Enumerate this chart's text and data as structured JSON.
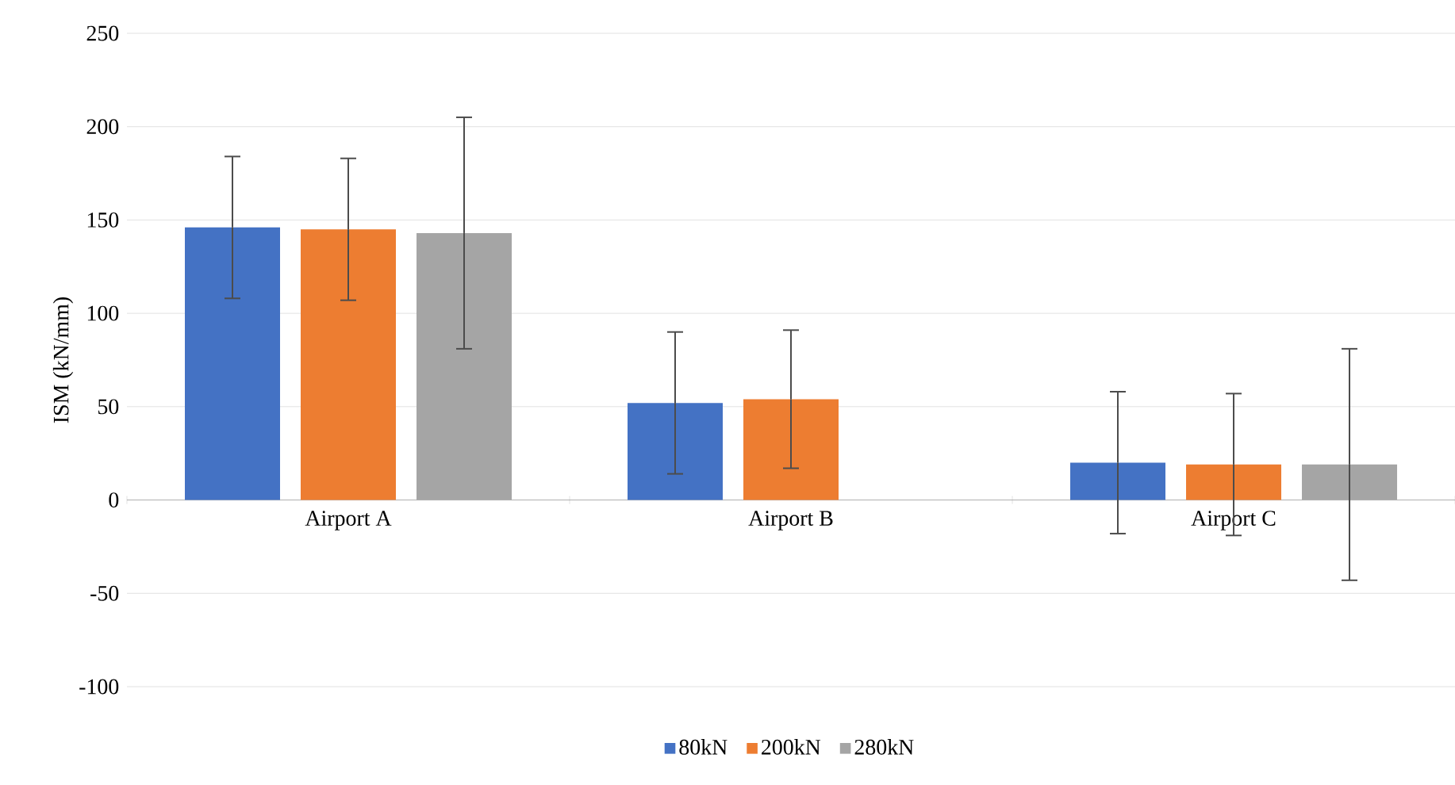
{
  "chart_data": {
    "type": "bar",
    "ylabel": "ISM (kN/mm)",
    "categories": [
      "Airport A",
      "Airport B",
      "Airport C"
    ],
    "series": [
      {
        "name": "80kN",
        "color": "#4472c4",
        "values": [
          146,
          52,
          20
        ],
        "errors": [
          38,
          38,
          38
        ]
      },
      {
        "name": "200kN",
        "color": "#ed7d31",
        "values": [
          145,
          54,
          19
        ],
        "errors": [
          38,
          37,
          38
        ]
      },
      {
        "name": "280kN",
        "color": "#a5a5a5",
        "values": [
          143,
          null,
          19
        ],
        "errors": [
          62,
          null,
          62
        ]
      }
    ],
    "ylim": [
      -100,
      250
    ],
    "yticks": [
      -100,
      -50,
      0,
      50,
      100,
      150,
      200,
      250
    ],
    "grid": "y",
    "legend": "bottom"
  }
}
